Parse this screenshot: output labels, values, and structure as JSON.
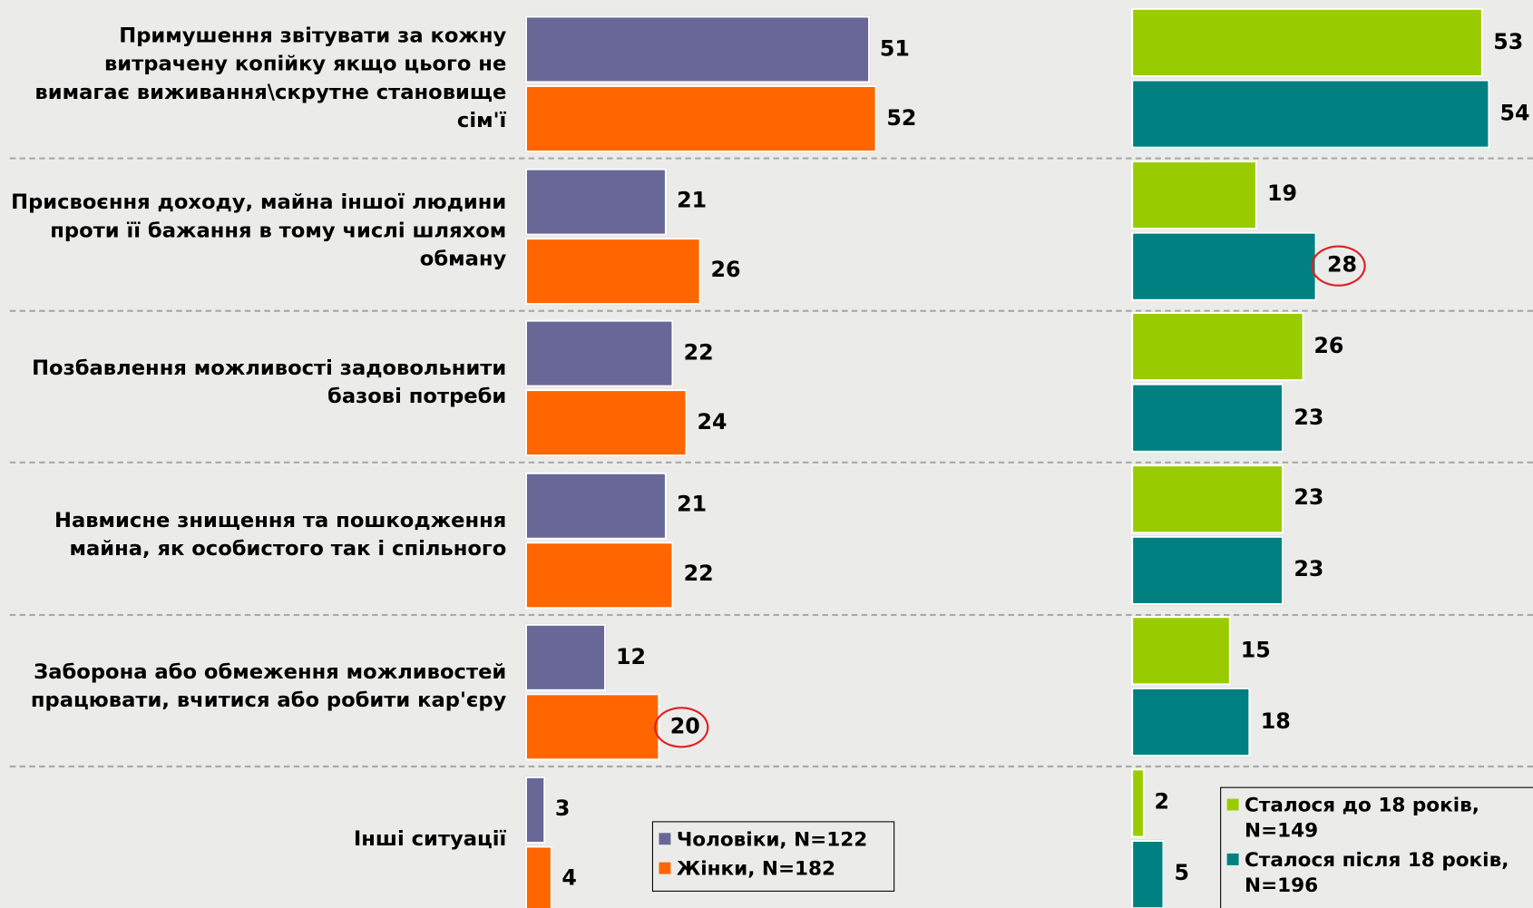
{
  "chart_data": [
    {
      "type": "bar",
      "orientation": "horizontal",
      "categories": [
        "Примушення звітувати за кожну витрачену копійку якщо цього не вимагає виживання\\скрутне становище сім'ї",
        "Присвоєння доходу, майна іншої людини проти її бажання в тому числі шляхом обману",
        "Позбавлення можливості задовольнити базові потреби",
        "Навмисне знищення та пошкодження майна, як особистого так і спільного",
        "Заборона або обмеження можливостей працювати, вчитися або робити кар'єру",
        "Інші ситуації"
      ],
      "series": [
        {
          "name": "Чоловіки, N=122",
          "color": "#696798",
          "values": [
            51,
            21,
            22,
            21,
            12,
            3
          ]
        },
        {
          "name": "Жінки, N=182",
          "color": "#ff6600",
          "values": [
            52,
            26,
            24,
            22,
            20,
            4
          ],
          "circled": [
            4
          ]
        }
      ]
    },
    {
      "type": "bar",
      "orientation": "horizontal",
      "series": [
        {
          "name": "Сталося до 18 років, N=149",
          "color": "#99cc00",
          "values": [
            53,
            19,
            26,
            23,
            15,
            2
          ]
        },
        {
          "name": "Сталося після 18 років, N=196",
          "color": "#008080",
          "values": [
            54,
            28,
            23,
            23,
            18,
            5
          ],
          "circled": [
            1
          ]
        }
      ]
    }
  ]
}
